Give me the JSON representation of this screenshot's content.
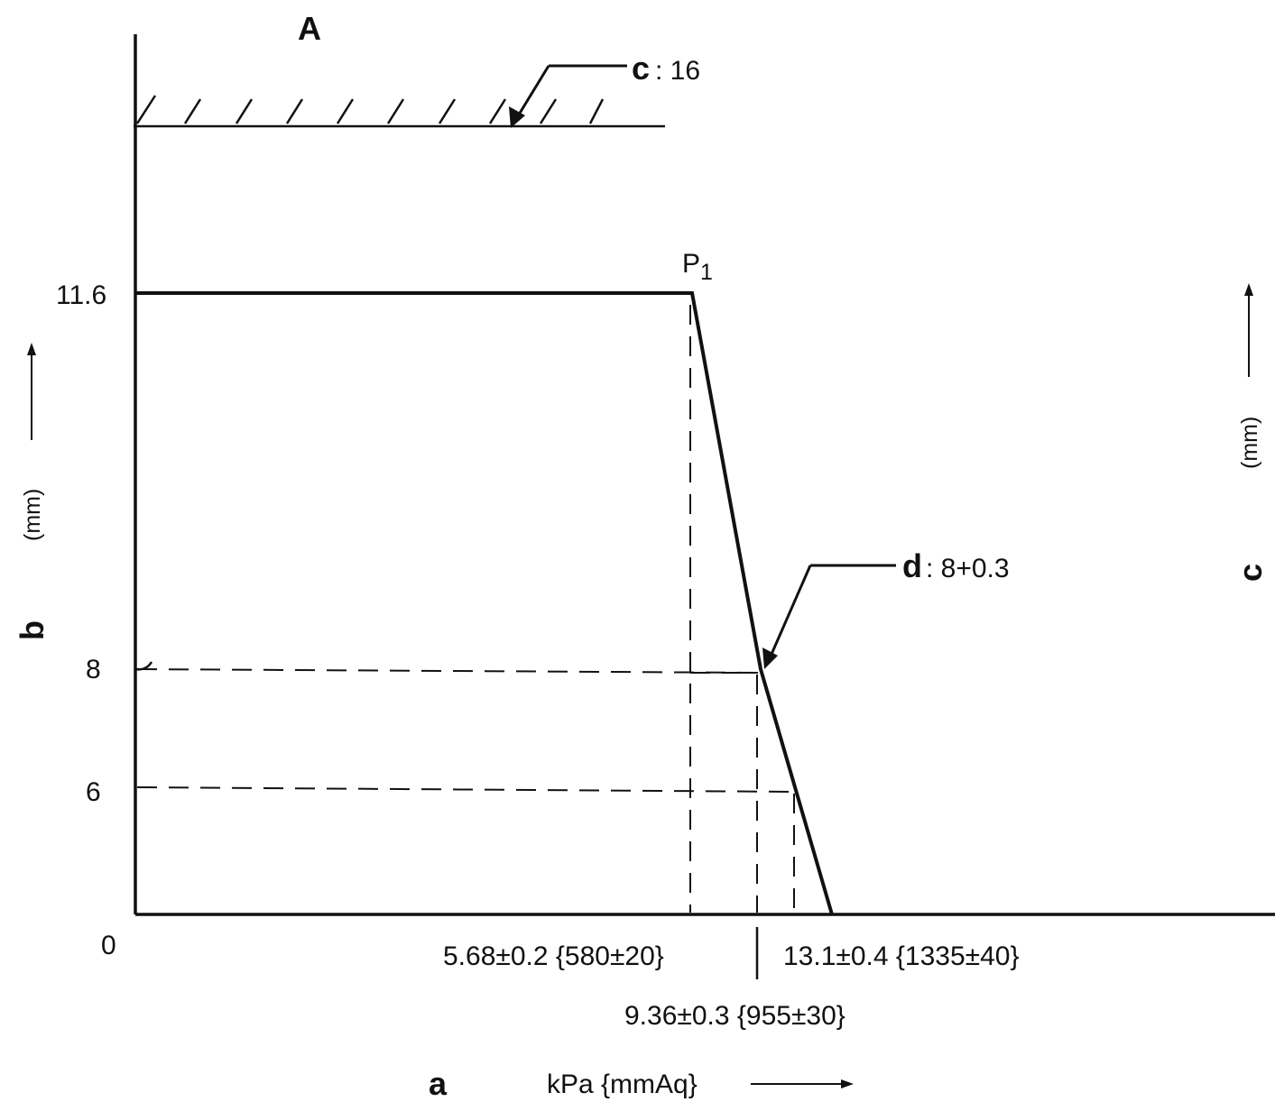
{
  "title": "A",
  "labels": {
    "c_callout_letter": "c",
    "c_callout_value": ": 16",
    "d_callout_letter": "d",
    "d_callout_value": ": 8+0.3",
    "p1_main": "P",
    "p1_sub": "1",
    "x_axis_letter": "a",
    "x_axis_unit": "kPa {mmAq}",
    "y_axis_letter": "b",
    "y_axis_unit": "(mm)",
    "right_axis_letter": "c",
    "right_axis_unit": "(mm)"
  },
  "y_ticks": [
    "11.6",
    "8",
    "6",
    "0"
  ],
  "x_annotations": {
    "x1": "5.68±0.2 {580±20}",
    "x2": "9.36±0.3 {955±30}",
    "x3": "13.1±0.4 {1335±40}"
  },
  "chart_data": {
    "type": "line",
    "series": [
      {
        "points": [
          [
            0,
            11.6
          ],
          [
            5.68,
            11.6
          ],
          [
            9.36,
            8
          ],
          [
            13.1,
            0
          ]
        ]
      }
    ],
    "reference_level_c": 16,
    "point_d": {
      "x": 9.36,
      "y": 8
    },
    "xlabel": "kPa {mmAq}",
    "ylabel": "(mm)"
  }
}
